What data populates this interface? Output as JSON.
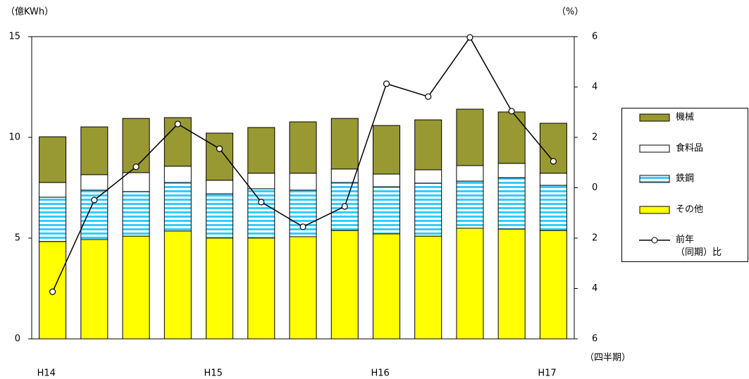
{
  "chart_data": {
    "type": "stacked-bar-line",
    "y_label": "（億KWh）",
    "y2_label": "（%）",
    "x_label": "（四半期）",
    "categories": [
      "H14",
      null,
      null,
      null,
      "H15",
      null,
      null,
      null,
      "H16",
      null,
      null,
      null,
      "H17"
    ],
    "ylim": [
      0,
      15
    ],
    "yticks": [
      0,
      5,
      10,
      15
    ],
    "y2lim": [
      -6,
      6
    ],
    "y2ticks": [
      {
        "value": -6,
        "label": "6"
      },
      {
        "value": -4,
        "label": "4"
      },
      {
        "value": -2,
        "label": "2"
      },
      0,
      2,
      4,
      6
    ],
    "series": [
      {
        "name": "その他",
        "color": "#ffff00",
        "values": [
          4.83,
          4.93,
          5.1,
          5.35,
          5.0,
          5.0,
          5.07,
          5.38,
          5.21,
          5.1,
          5.49,
          5.45,
          5.38
        ]
      },
      {
        "name": "鉄鋼",
        "color": "#33ccff",
        "pattern": "stripes",
        "values": [
          2.2,
          2.45,
          2.21,
          2.41,
          2.2,
          2.45,
          2.31,
          2.38,
          2.34,
          2.63,
          2.34,
          2.55,
          2.24
        ]
      },
      {
        "name": "食料品",
        "color": "#ffffff",
        "values": [
          0.73,
          0.77,
          0.94,
          0.81,
          0.67,
          0.77,
          0.84,
          0.67,
          0.63,
          0.66,
          0.77,
          0.71,
          0.6
        ]
      },
      {
        "name": "機械",
        "color": "#999933",
        "values": [
          2.27,
          2.37,
          2.69,
          2.41,
          2.34,
          2.27,
          2.55,
          2.51,
          2.41,
          2.48,
          2.8,
          2.55,
          2.48
        ]
      },
      {
        "name": "前年\n（同期）比",
        "type": "line",
        "axis": "y2",
        "color": "#000000",
        "values": [
          -4.13,
          -0.49,
          0.83,
          2.53,
          1.55,
          -0.57,
          -1.55,
          -0.74,
          4.13,
          3.62,
          5.97,
          3.04,
          1.05
        ]
      }
    ]
  }
}
